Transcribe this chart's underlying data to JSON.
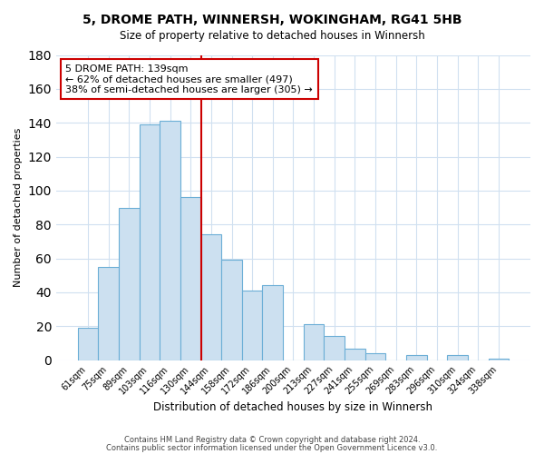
{
  "title": "5, DROME PATH, WINNERSH, WOKINGHAM, RG41 5HB",
  "subtitle": "Size of property relative to detached houses in Winnersh",
  "xlabel": "Distribution of detached houses by size in Winnersh",
  "ylabel": "Number of detached properties",
  "bar_labels": [
    "61sqm",
    "75sqm",
    "89sqm",
    "103sqm",
    "116sqm",
    "130sqm",
    "144sqm",
    "158sqm",
    "172sqm",
    "186sqm",
    "200sqm",
    "213sqm",
    "227sqm",
    "241sqm",
    "255sqm",
    "269sqm",
    "283sqm",
    "296sqm",
    "310sqm",
    "324sqm",
    "338sqm"
  ],
  "bar_values": [
    19,
    55,
    90,
    139,
    141,
    96,
    74,
    59,
    41,
    44,
    0,
    21,
    14,
    7,
    4,
    0,
    3,
    0,
    3,
    0,
    1
  ],
  "bar_color": "#cce0f0",
  "bar_edgecolor": "#6baed6",
  "vline_x": 5.5,
  "vline_color": "#cc0000",
  "annotation_title": "5 DROME PATH: 139sqm",
  "annotation_line1": "← 62% of detached houses are smaller (497)",
  "annotation_line2": "38% of semi-detached houses are larger (305) →",
  "annotation_box_edgecolor": "#cc0000",
  "ylim": [
    0,
    180
  ],
  "yticks": [
    0,
    20,
    40,
    60,
    80,
    100,
    120,
    140,
    160,
    180
  ],
  "footer1": "Contains HM Land Registry data © Crown copyright and database right 2024.",
  "footer2": "Contains public sector information licensed under the Open Government Licence v3.0.",
  "background_color": "#ffffff",
  "grid_color": "#d0e0f0"
}
